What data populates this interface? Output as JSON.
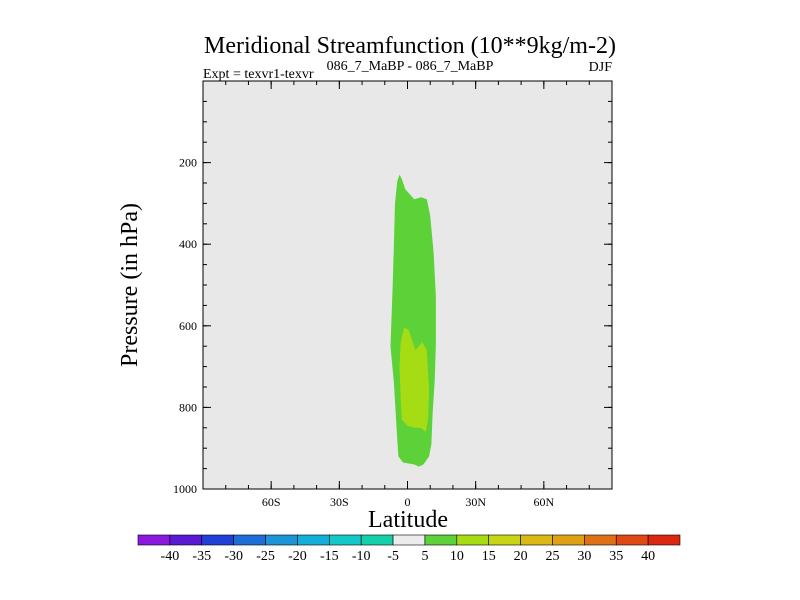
{
  "colors": {
    "background": "#ffffff",
    "plot_area": "#e8e8e8",
    "missing_band": "#ffffff"
  },
  "chart_data": {
    "type": "contour",
    "title": "Meridional Streamfunction (10**9kg/m-2)",
    "left_string": "Expt = texvr1-texvr",
    "center_string": "086_7_MaBP - 086_7_MaBP",
    "right_string": "DJF",
    "xlabel": "Latitude",
    "ylabel": "Pressure (in hPa)",
    "x_range": [
      -90,
      90
    ],
    "y_range": [
      1000,
      0
    ],
    "y_reversed": true,
    "x_ticks": [
      {
        "value": -60,
        "label": "60S"
      },
      {
        "value": -30,
        "label": "30S"
      },
      {
        "value": 0,
        "label": "0"
      },
      {
        "value": 30,
        "label": "30N"
      },
      {
        "value": 60,
        "label": "60N"
      }
    ],
    "x_minor_step": 10,
    "y_ticks": [
      {
        "value": 200,
        "label": "200"
      },
      {
        "value": 400,
        "label": "400"
      },
      {
        "value": 600,
        "label": "600"
      },
      {
        "value": 800,
        "label": "800"
      },
      {
        "value": 1000,
        "label": "1000"
      }
    ],
    "y_minor_step": 50,
    "filled_regions": [
      {
        "name": "streamfunction-5-to-10",
        "range": [
          5,
          10
        ],
        "color": "#5cd138",
        "points": [
          [
            -3.5,
            230
          ],
          [
            -2.5,
            240
          ],
          [
            -1,
            265
          ],
          [
            3,
            290
          ],
          [
            6,
            285
          ],
          [
            8.5,
            290
          ],
          [
            10,
            330
          ],
          [
            11.5,
            420
          ],
          [
            12.5,
            530
          ],
          [
            12.5,
            640
          ],
          [
            12,
            730
          ],
          [
            11,
            820
          ],
          [
            10.5,
            890
          ],
          [
            9.5,
            920
          ],
          [
            7,
            940
          ],
          [
            5,
            945
          ],
          [
            3,
            940
          ],
          [
            -2,
            935
          ],
          [
            -4,
            920
          ],
          [
            -4.5,
            880
          ],
          [
            -6,
            740
          ],
          [
            -7.5,
            650
          ],
          [
            -6.5,
            500
          ],
          [
            -6,
            400
          ],
          [
            -5.5,
            300
          ],
          [
            -4.5,
            245
          ]
        ]
      },
      {
        "name": "streamfunction-10-to-15",
        "range": [
          10,
          15
        ],
        "color": "#a6dc14",
        "points": [
          [
            -1.5,
            605
          ],
          [
            0.5,
            610
          ],
          [
            3.5,
            660
          ],
          [
            6.5,
            640
          ],
          [
            8.5,
            660
          ],
          [
            9.5,
            760
          ],
          [
            9,
            830
          ],
          [
            8,
            860
          ],
          [
            6,
            850
          ],
          [
            3,
            850
          ],
          [
            0,
            845
          ],
          [
            -2.5,
            830
          ],
          [
            -3,
            780
          ],
          [
            -3.5,
            700
          ],
          [
            -3,
            640
          ]
        ]
      }
    ],
    "colorbar": {
      "orientation": "horizontal",
      "levels": [
        -40,
        -35,
        -30,
        -25,
        -20,
        -15,
        -10,
        -5,
        5,
        10,
        15,
        20,
        25,
        30,
        35,
        40
      ],
      "labels": [
        "-40",
        "-35",
        "-30",
        "-25",
        "-20",
        "-15",
        "-10",
        "-5",
        "5",
        "10",
        "15",
        "20",
        "25",
        "30",
        "35",
        "40"
      ],
      "colors": [
        "#8a1ae0",
        "#5a1ad4",
        "#2040d8",
        "#1e6ed8",
        "#1a96d8",
        "#12b0d8",
        "#12c8c8",
        "#14d0a8",
        "#ececec",
        "#5cd138",
        "#a6dc14",
        "#c8d414",
        "#dcb814",
        "#e0a014",
        "#e07014",
        "#e04814",
        "#dc2810"
      ]
    }
  }
}
